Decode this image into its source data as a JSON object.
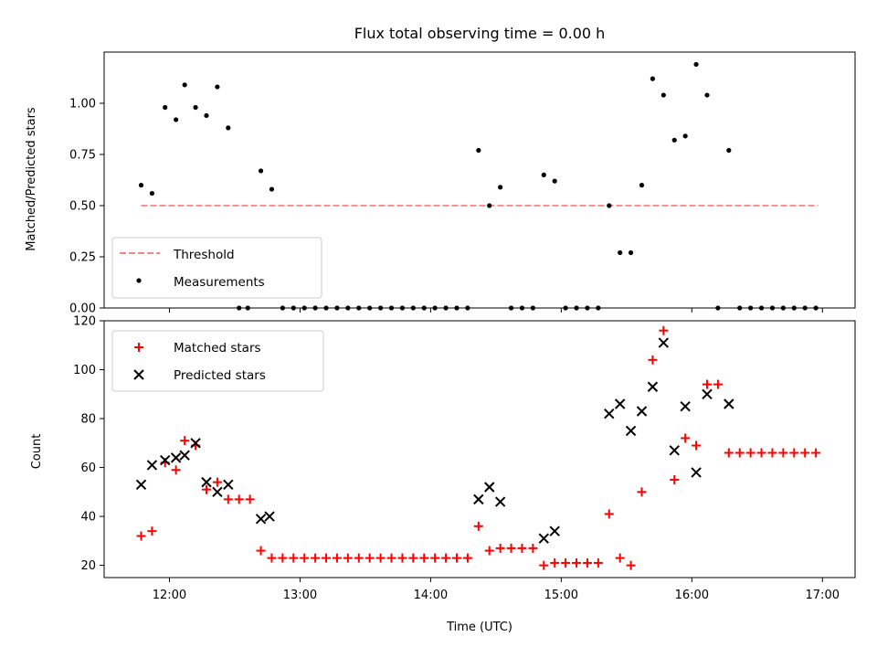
{
  "chart_data": [
    {
      "type": "scatter",
      "title": "Flux total observing time = 0.00 h",
      "xlabel": "",
      "ylabel": "Matched/Predicted stars",
      "xlim": [
        "11:30",
        "17:15"
      ],
      "ylim": [
        0,
        1.25
      ],
      "yticks": [
        "0.00",
        "0.25",
        "0.50",
        "0.75",
        "1.00"
      ],
      "grid": false,
      "legend_position": "lower-left",
      "threshold": {
        "name": "Threshold",
        "y": 0.5,
        "x_start": "11:47",
        "x_end": "16:58",
        "color": "#ff7f7f"
      },
      "series": [
        {
          "name": "Measurements",
          "color": "#000000",
          "marker": "dot",
          "points": [
            [
              "11:47",
              0.6
            ],
            [
              "11:52",
              0.56
            ],
            [
              "11:58",
              0.98
            ],
            [
              "12:03",
              0.92
            ],
            [
              "12:07",
              1.09
            ],
            [
              "12:12",
              0.98
            ],
            [
              "12:17",
              0.94
            ],
            [
              "12:22",
              1.08
            ],
            [
              "12:27",
              0.88
            ],
            [
              "12:32",
              0.0
            ],
            [
              "12:36",
              0.0
            ],
            [
              "12:42",
              0.67
            ],
            [
              "12:47",
              0.58
            ],
            [
              "12:52",
              0.0
            ],
            [
              "12:57",
              0.0
            ],
            [
              "13:02",
              0.0
            ],
            [
              "13:07",
              0.0
            ],
            [
              "13:12",
              0.0
            ],
            [
              "13:17",
              0.0
            ],
            [
              "13:22",
              0.0
            ],
            [
              "13:27",
              0.0
            ],
            [
              "13:32",
              0.0
            ],
            [
              "13:37",
              0.0
            ],
            [
              "13:42",
              0.0
            ],
            [
              "13:47",
              0.0
            ],
            [
              "13:52",
              0.0
            ],
            [
              "13:57",
              0.0
            ],
            [
              "14:02",
              0.0
            ],
            [
              "14:07",
              0.0
            ],
            [
              "14:12",
              0.0
            ],
            [
              "14:17",
              0.0
            ],
            [
              "14:22",
              0.77
            ],
            [
              "14:27",
              0.5
            ],
            [
              "14:32",
              0.59
            ],
            [
              "14:37",
              0.0
            ],
            [
              "14:42",
              0.0
            ],
            [
              "14:47",
              0.0
            ],
            [
              "14:52",
              0.65
            ],
            [
              "14:57",
              0.62
            ],
            [
              "15:02",
              0.0
            ],
            [
              "15:07",
              0.0
            ],
            [
              "15:12",
              0.0
            ],
            [
              "15:17",
              0.0
            ],
            [
              "15:22",
              0.5
            ],
            [
              "15:27",
              0.27
            ],
            [
              "15:32",
              0.27
            ],
            [
              "15:37",
              0.6
            ],
            [
              "15:42",
              1.12
            ],
            [
              "15:47",
              1.04
            ],
            [
              "15:52",
              0.82
            ],
            [
              "15:57",
              0.84
            ],
            [
              "16:02",
              1.19
            ],
            [
              "16:07",
              1.04
            ],
            [
              "16:12",
              0.0
            ],
            [
              "16:17",
              0.77
            ],
            [
              "16:22",
              0.0
            ],
            [
              "16:27",
              0.0
            ],
            [
              "16:32",
              0.0
            ],
            [
              "16:37",
              0.0
            ],
            [
              "16:42",
              0.0
            ],
            [
              "16:47",
              0.0
            ],
            [
              "16:52",
              0.0
            ],
            [
              "16:57",
              0.0
            ]
          ]
        }
      ]
    },
    {
      "type": "scatter",
      "title": "",
      "xlabel": "Time (UTC)",
      "ylabel": "Count",
      "xlim": [
        "11:30",
        "17:15"
      ],
      "ylim": [
        15,
        120
      ],
      "xticks": [
        "12:00",
        "13:00",
        "14:00",
        "15:00",
        "16:00",
        "17:00"
      ],
      "yticks": [
        20,
        40,
        60,
        80,
        100,
        120
      ],
      "grid": false,
      "legend_position": "upper-left",
      "series": [
        {
          "name": "Matched stars",
          "color": "#ff0000",
          "marker": "plus",
          "points": [
            [
              "11:47",
              32
            ],
            [
              "11:52",
              34
            ],
            [
              "11:58",
              62
            ],
            [
              "12:03",
              59
            ],
            [
              "12:07",
              71
            ],
            [
              "12:12",
              69
            ],
            [
              "12:17",
              51
            ],
            [
              "12:22",
              54
            ],
            [
              "12:27",
              47
            ],
            [
              "12:32",
              47
            ],
            [
              "12:37",
              47
            ],
            [
              "12:42",
              26
            ],
            [
              "12:47",
              23
            ],
            [
              "12:52",
              23
            ],
            [
              "12:57",
              23
            ],
            [
              "13:02",
              23
            ],
            [
              "13:07",
              23
            ],
            [
              "13:12",
              23
            ],
            [
              "13:17",
              23
            ],
            [
              "13:22",
              23
            ],
            [
              "13:27",
              23
            ],
            [
              "13:32",
              23
            ],
            [
              "13:37",
              23
            ],
            [
              "13:42",
              23
            ],
            [
              "13:47",
              23
            ],
            [
              "13:52",
              23
            ],
            [
              "13:57",
              23
            ],
            [
              "14:02",
              23
            ],
            [
              "14:07",
              23
            ],
            [
              "14:12",
              23
            ],
            [
              "14:17",
              23
            ],
            [
              "14:22",
              36
            ],
            [
              "14:27",
              26
            ],
            [
              "14:32",
              27
            ],
            [
              "14:37",
              27
            ],
            [
              "14:42",
              27
            ],
            [
              "14:47",
              27
            ],
            [
              "14:52",
              20
            ],
            [
              "14:57",
              21
            ],
            [
              "15:02",
              21
            ],
            [
              "15:07",
              21
            ],
            [
              "15:12",
              21
            ],
            [
              "15:17",
              21
            ],
            [
              "15:22",
              41
            ],
            [
              "15:27",
              23
            ],
            [
              "15:32",
              20
            ],
            [
              "15:37",
              50
            ],
            [
              "15:42",
              104
            ],
            [
              "15:47",
              116
            ],
            [
              "15:52",
              55
            ],
            [
              "15:57",
              72
            ],
            [
              "16:02",
              69
            ],
            [
              "16:07",
              94
            ],
            [
              "16:12",
              94
            ],
            [
              "16:17",
              66
            ],
            [
              "16:22",
              66
            ],
            [
              "16:27",
              66
            ],
            [
              "16:32",
              66
            ],
            [
              "16:37",
              66
            ],
            [
              "16:42",
              66
            ],
            [
              "16:47",
              66
            ],
            [
              "16:52",
              66
            ],
            [
              "16:57",
              66
            ]
          ]
        },
        {
          "name": "Predicted stars",
          "color": "#000000",
          "marker": "x",
          "points": [
            [
              "11:47",
              53
            ],
            [
              "11:52",
              61
            ],
            [
              "11:58",
              63
            ],
            [
              "12:03",
              64
            ],
            [
              "12:07",
              65
            ],
            [
              "12:12",
              70
            ],
            [
              "12:17",
              54
            ],
            [
              "12:22",
              50
            ],
            [
              "12:27",
              53
            ],
            [
              "12:42",
              39
            ],
            [
              "12:46",
              40
            ],
            [
              "14:22",
              47
            ],
            [
              "14:27",
              52
            ],
            [
              "14:32",
              46
            ],
            [
              "14:52",
              31
            ],
            [
              "14:57",
              34
            ],
            [
              "15:22",
              82
            ],
            [
              "15:27",
              86
            ],
            [
              "15:32",
              75
            ],
            [
              "15:37",
              83
            ],
            [
              "15:42",
              93
            ],
            [
              "15:47",
              111
            ],
            [
              "15:52",
              67
            ],
            [
              "15:57",
              85
            ],
            [
              "16:02",
              58
            ],
            [
              "16:07",
              90
            ],
            [
              "16:17",
              86
            ]
          ]
        }
      ]
    }
  ]
}
